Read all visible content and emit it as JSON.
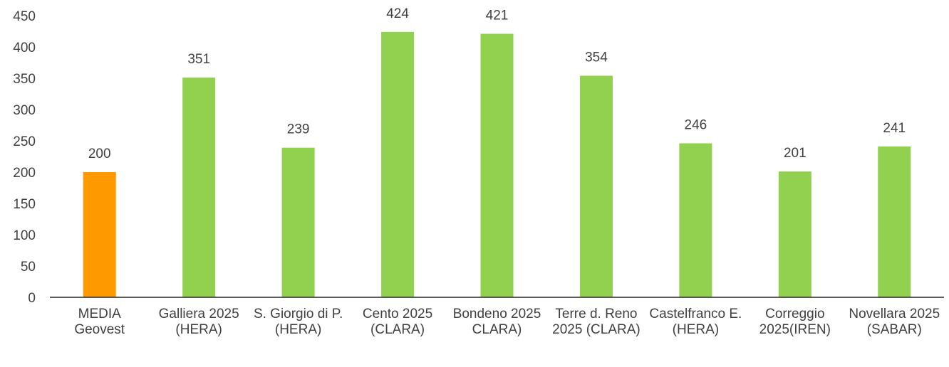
{
  "chart_data": {
    "type": "bar",
    "categories": [
      "MEDIA Geovest",
      "Galliera 2025 (HERA)",
      "S. Giorgio di P. (HERA)",
      "Cento 2025 (CLARA)",
      "Bondeno 2025 CLARA)",
      "Terre d. Reno 2025 (CLARA)",
      "Castelfranco E. (HERA)",
      "Correggio 2025(IREN)",
      "Novellara 2025 (SABAR)"
    ],
    "values": [
      200,
      351,
      239,
      424,
      421,
      354,
      246,
      201,
      241
    ],
    "colors": [
      "#ff9900",
      "#92d050",
      "#92d050",
      "#92d050",
      "#92d050",
      "#92d050",
      "#92d050",
      "#92d050",
      "#92d050"
    ],
    "ylim": [
      0,
      450
    ],
    "yticks": [
      0,
      50,
      100,
      150,
      200,
      250,
      300,
      350,
      400,
      450
    ],
    "grid": false
  }
}
